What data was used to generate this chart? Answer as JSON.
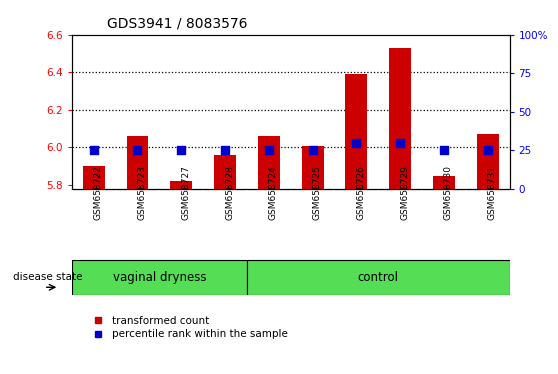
{
  "title": "GDS3941 / 8083576",
  "samples": [
    "GSM658722",
    "GSM658723",
    "GSM658727",
    "GSM658728",
    "GSM658724",
    "GSM658725",
    "GSM658726",
    "GSM658729",
    "GSM658730",
    "GSM658731"
  ],
  "transformed_count": [
    5.9,
    6.06,
    5.82,
    5.96,
    6.06,
    6.01,
    6.39,
    6.53,
    5.85,
    6.07
  ],
  "percentile_rank": [
    25,
    25,
    25,
    25,
    25,
    25,
    30,
    30,
    25,
    25
  ],
  "ylim_left": [
    5.78,
    6.6
  ],
  "ylim_right": [
    0,
    100
  ],
  "yticks_left": [
    5.8,
    6.0,
    6.2,
    6.4,
    6.6
  ],
  "yticks_right": [
    0,
    25,
    50,
    75,
    100
  ],
  "groups": [
    {
      "label": "vaginal dryness",
      "start": 0,
      "end": 4
    },
    {
      "label": "control",
      "start": 4,
      "end": 10
    }
  ],
  "bar_color": "#CC0000",
  "dot_color": "#0000CC",
  "bar_width": 0.5,
  "dot_size": 30,
  "sample_label_color": "#C8C8C8",
  "group_color": "#55DD55",
  "legend_items": [
    {
      "label": "transformed count",
      "color": "#CC0000"
    },
    {
      "label": "percentile rank within the sample",
      "color": "#0000CC"
    }
  ],
  "disease_state_label": "disease state"
}
